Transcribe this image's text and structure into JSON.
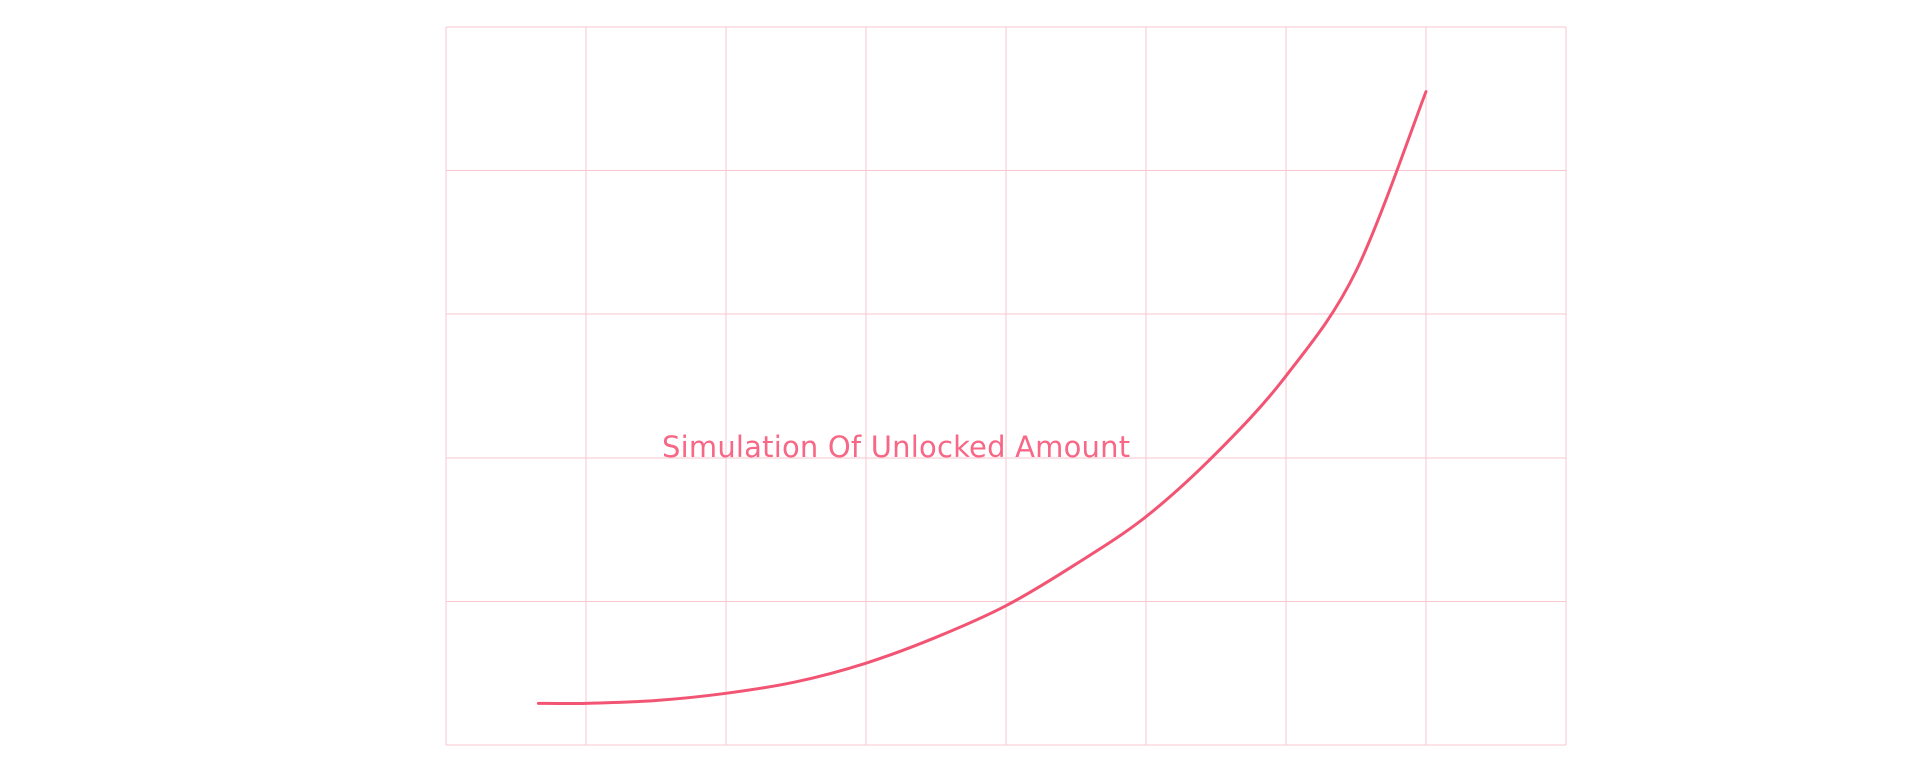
{
  "colors": {
    "accent": "#f25574",
    "grid": "#f7c7d1",
    "title": "#f76786",
    "background": "#ffffff"
  },
  "chart_data": {
    "type": "line",
    "title": "Simulation Of Unlocked Amount",
    "xlabel": "",
    "ylabel": "",
    "grid": true,
    "x_tick_labels": [],
    "y_tick_labels": [],
    "xlim": [
      0,
      8
    ],
    "ylim": [
      0,
      5
    ],
    "series": [
      {
        "color": "#f25574",
        "x": [
          0.66,
          1,
          1.5,
          2,
          2.5,
          3,
          3.5,
          4,
          4.5,
          5,
          5.5,
          6,
          6.5,
          7
        ],
        "y": [
          0.29,
          0.29,
          0.31,
          0.36,
          0.44,
          0.57,
          0.75,
          0.97,
          1.26,
          1.59,
          2.03,
          2.57,
          3.3,
          4.55
        ]
      }
    ]
  }
}
